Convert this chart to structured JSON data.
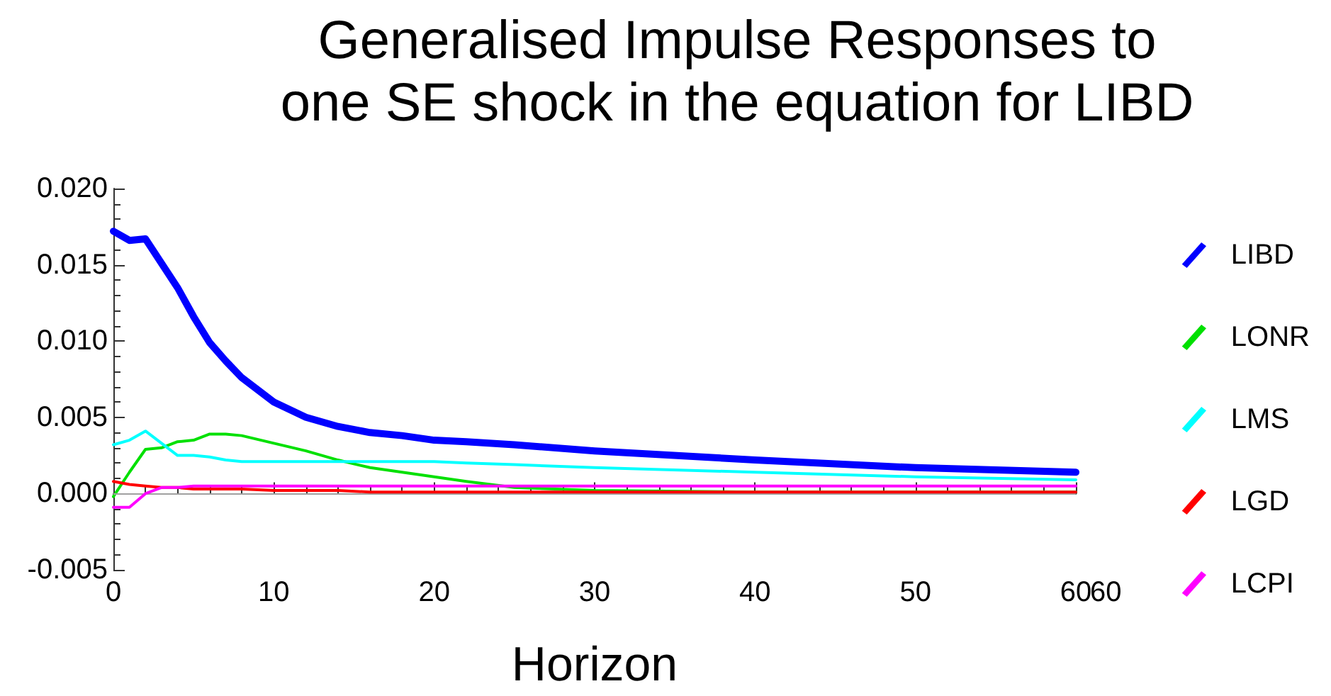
{
  "chart_data": {
    "type": "line",
    "title": "Generalised Impulse Responses to\none SE shock in the equation for LIBD",
    "xlabel": "Horizon",
    "x": [
      0,
      1,
      2,
      3,
      4,
      5,
      6,
      7,
      8,
      10,
      12,
      14,
      16,
      18,
      20,
      22,
      25,
      30,
      40,
      50,
      60
    ],
    "series": [
      {
        "name": "LIBD",
        "color": "#0000ff",
        "values": [
          0.0172,
          0.0166,
          0.0167,
          0.0151,
          0.0135,
          0.0116,
          0.0099,
          0.0087,
          0.0076,
          0.006,
          0.005,
          0.0044,
          0.004,
          0.0038,
          0.0035,
          0.0034,
          0.0032,
          0.0028,
          0.0022,
          0.0017,
          0.0014
        ]
      },
      {
        "name": "LONR",
        "color": "#00e000",
        "values": [
          -0.0002,
          0.0014,
          0.0029,
          0.003,
          0.0034,
          0.0035,
          0.0039,
          0.0039,
          0.0038,
          0.0033,
          0.0028,
          0.0022,
          0.0017,
          0.0014,
          0.0011,
          0.0008,
          0.0004,
          0.0002,
          0.0001,
          0.0001,
          0.0001
        ]
      },
      {
        "name": "LMS",
        "color": "#00ffff",
        "values": [
          0.0032,
          0.0035,
          0.0041,
          0.0033,
          0.0025,
          0.0025,
          0.0024,
          0.0022,
          0.0021,
          0.0021,
          0.0021,
          0.0021,
          0.0021,
          0.0021,
          0.0021,
          0.002,
          0.0019,
          0.0017,
          0.0014,
          0.0011,
          0.0009
        ]
      },
      {
        "name": "LGD",
        "color": "#ff0000",
        "values": [
          0.0008,
          0.0006,
          0.0005,
          0.0004,
          0.0004,
          0.0003,
          0.0003,
          0.0003,
          0.0003,
          0.0002,
          0.0002,
          0.0002,
          0.0001,
          0.0001,
          0.0001,
          0.0001,
          0.0001,
          0.0001,
          0.0001,
          0.0001,
          0.0001
        ]
      },
      {
        "name": "LCPI",
        "color": "#ff00ff",
        "values": [
          -0.0009,
          -0.0009,
          0.0,
          0.0004,
          0.0004,
          0.0005,
          0.0005,
          0.0005,
          0.0005,
          0.0005,
          0.0005,
          0.0005,
          0.0005,
          0.0005,
          0.0005,
          0.0005,
          0.0005,
          0.0005,
          0.0005,
          0.0005,
          0.0005
        ]
      }
    ],
    "xlim": [
      0,
      60
    ],
    "xticks": [
      0,
      10,
      20,
      30,
      40,
      50,
      60
    ],
    "ylim": [
      -0.005,
      0.02
    ],
    "yticks": [
      {
        "value": -0.005,
        "label": "-0.005"
      },
      {
        "value": 0,
        "label": "0.000"
      },
      {
        "value": 0.005,
        "label": "0.005"
      },
      {
        "value": 0.01,
        "label": "0.010"
      },
      {
        "value": 0.015,
        "label": "0.015"
      },
      {
        "value": 0.02,
        "label": "0.020"
      }
    ],
    "ref_lines": [
      {
        "axis": "y",
        "value": 0,
        "label": null,
        "color": "#a0a0a0"
      }
    ],
    "annotations": [
      "60"
    ],
    "legend": "right",
    "grid": false,
    "marker": "none",
    "line_style": "solid"
  }
}
